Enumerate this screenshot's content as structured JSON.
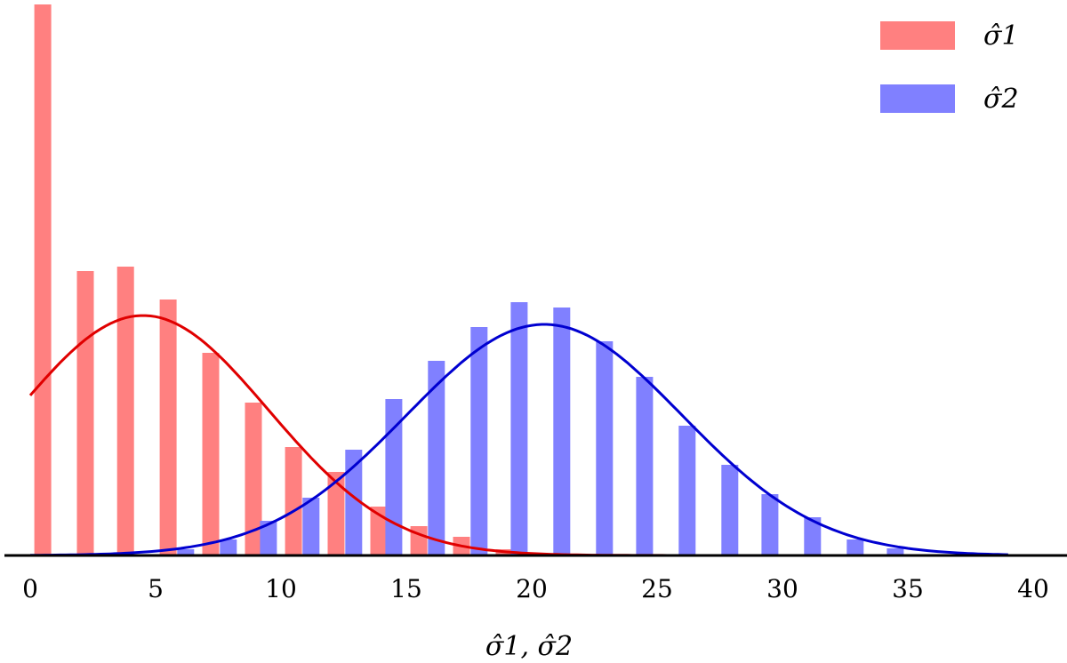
{
  "chart_data": {
    "type": "bar",
    "xlabel": "σ̂1, σ̂2",
    "xlim": [
      0,
      40
    ],
    "x_ticks": [
      0,
      5,
      10,
      15,
      20,
      25,
      30,
      35,
      40
    ],
    "y_axis_shown": false,
    "grid": false,
    "legend_position": "top-right",
    "series": [
      {
        "name": "σ̂1",
        "bar_color": "#ff8080",
        "curve_color": "#e00000",
        "bars": {
          "x": [
            0.5,
            2.2,
            3.8,
            5.5,
            7.2,
            8.9,
            10.5,
            12.2,
            13.9,
            15.5,
            17.2,
            18.9
          ],
          "values": [
            62,
            32,
            32.5,
            28.8,
            22.8,
            17.2,
            12.2,
            9.4,
            5.5,
            3.3,
            2.1,
            0.7
          ]
        },
        "fit_curve": {
          "distribution": "normal",
          "mean": 4.5,
          "sd": 5.0,
          "peak": 27
        }
      },
      {
        "name": "σ̂2",
        "bar_color": "#8080ff",
        "curve_color": "#0000d0",
        "bars": {
          "x": [
            6.2,
            7.9,
            9.5,
            11.2,
            12.9,
            14.5,
            16.2,
            17.9,
            19.5,
            21.2,
            22.9,
            24.5,
            26.2,
            27.9,
            29.5,
            31.2,
            32.9,
            34.5
          ],
          "values": [
            0.7,
            1.8,
            3.9,
            6.5,
            11.9,
            17.6,
            21.9,
            25.7,
            28.5,
            27.9,
            24.1,
            20.1,
            14.6,
            10.2,
            6.9,
            4.3,
            1.8,
            0.8
          ]
        },
        "fit_curve": {
          "distribution": "normal",
          "mean": 20.5,
          "sd": 5.5,
          "peak": 26
        }
      }
    ]
  }
}
